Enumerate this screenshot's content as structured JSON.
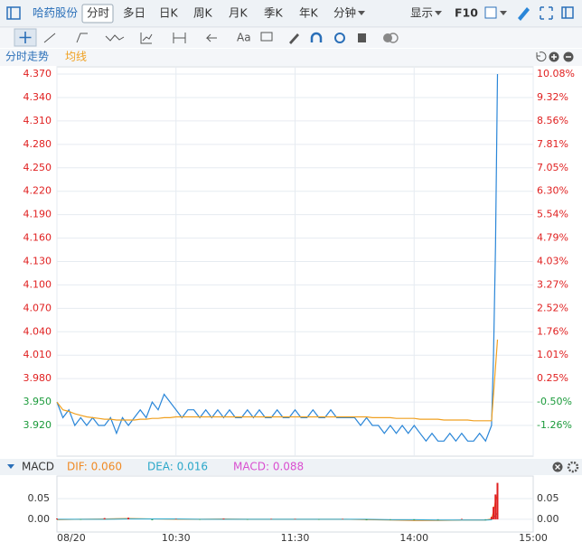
{
  "toolbar": {
    "stock": "哈药股份",
    "tabs": [
      "分时",
      "多日",
      "日K",
      "周K",
      "月K",
      "季K",
      "年K",
      "分钟"
    ],
    "display": "显示",
    "f10": "F10",
    "font_tool": "Aa"
  },
  "chart_data": [
    {
      "type": "line",
      "title": "分时走势",
      "x": [
        0,
        3,
        6,
        9,
        12,
        15,
        18,
        21,
        24,
        27,
        30,
        33,
        36,
        39,
        42,
        45,
        48,
        51,
        54,
        57,
        60,
        63,
        66,
        69,
        72,
        75,
        78,
        81,
        84,
        87,
        90,
        93,
        96,
        99,
        102,
        105,
        108,
        111,
        114,
        117,
        120,
        123,
        126,
        129,
        132,
        135,
        138,
        141,
        144,
        147,
        150,
        153,
        156,
        159,
        162,
        165,
        168,
        171,
        174,
        177,
        180,
        183,
        186,
        189,
        192,
        195,
        198,
        201,
        204,
        207,
        210,
        213,
        216,
        219,
        220,
        221,
        222
      ],
      "series": [
        {
          "color": "#2a86d8",
          "values": [
            3.95,
            3.93,
            3.94,
            3.92,
            3.93,
            3.92,
            3.93,
            3.92,
            3.92,
            3.93,
            3.91,
            3.93,
            3.92,
            3.93,
            3.94,
            3.93,
            3.95,
            3.94,
            3.96,
            3.95,
            3.94,
            3.93,
            3.94,
            3.94,
            3.93,
            3.94,
            3.93,
            3.94,
            3.93,
            3.94,
            3.93,
            3.93,
            3.94,
            3.93,
            3.94,
            3.93,
            3.93,
            3.94,
            3.93,
            3.93,
            3.94,
            3.93,
            3.93,
            3.94,
            3.93,
            3.93,
            3.94,
            3.93,
            3.93,
            3.93,
            3.93,
            3.92,
            3.93,
            3.92,
            3.92,
            3.91,
            3.92,
            3.91,
            3.92,
            3.91,
            3.92,
            3.91,
            3.9,
            3.91,
            3.9,
            3.9,
            3.91,
            3.9,
            3.91,
            3.9,
            3.9,
            3.91,
            3.9,
            3.92,
            4.01,
            4.15,
            4.37
          ]
        },
        {
          "name": "均线",
          "color": "#f0a020",
          "values": [
            3.95,
            3.94,
            3.938,
            3.935,
            3.933,
            3.931,
            3.93,
            3.929,
            3.928,
            3.928,
            3.927,
            3.927,
            3.927,
            3.927,
            3.928,
            3.928,
            3.929,
            3.929,
            3.93,
            3.93,
            3.931,
            3.931,
            3.931,
            3.931,
            3.931,
            3.931,
            3.931,
            3.931,
            3.931,
            3.931,
            3.931,
            3.931,
            3.931,
            3.931,
            3.931,
            3.931,
            3.931,
            3.931,
            3.931,
            3.931,
            3.931,
            3.931,
            3.931,
            3.931,
            3.931,
            3.931,
            3.931,
            3.931,
            3.931,
            3.931,
            3.931,
            3.931,
            3.931,
            3.93,
            3.93,
            3.93,
            3.93,
            3.929,
            3.929,
            3.929,
            3.929,
            3.928,
            3.928,
            3.928,
            3.928,
            3.927,
            3.927,
            3.927,
            3.927,
            3.927,
            3.926,
            3.926,
            3.926,
            3.926,
            3.96,
            3.995,
            4.03
          ]
        }
      ],
      "xlim": [
        0,
        240
      ],
      "xticks": [
        {
          "value": 0,
          "label": "08/20"
        },
        {
          "value": 60,
          "label": "10:30"
        },
        {
          "value": 120,
          "label": "11:30"
        },
        {
          "value": 180,
          "label": "14:00"
        },
        {
          "value": 240,
          "label": "15:00"
        }
      ],
      "ylim": [
        3.8807,
        4.3793
      ],
      "yticks": [
        {
          "value": 4.37,
          "label": "4.370"
        },
        {
          "value": 4.34,
          "label": "4.340"
        },
        {
          "value": 4.31,
          "label": "4.310"
        },
        {
          "value": 4.28,
          "label": "4.280"
        },
        {
          "value": 4.25,
          "label": "4.250"
        },
        {
          "value": 4.22,
          "label": "4.220"
        },
        {
          "value": 4.19,
          "label": "4.190"
        },
        {
          "value": 4.16,
          "label": "4.160"
        },
        {
          "value": 4.13,
          "label": "4.130"
        },
        {
          "value": 4.1,
          "label": "4.100"
        },
        {
          "value": 4.07,
          "label": "4.070"
        },
        {
          "value": 4.04,
          "label": "4.040"
        },
        {
          "value": 4.01,
          "label": "4.010"
        },
        {
          "value": 3.98,
          "label": "3.980"
        },
        {
          "value": 3.95,
          "label": "3.950"
        },
        {
          "value": 3.92,
          "label": "3.920"
        }
      ],
      "y2lim": [
        -2.25,
        10.31
      ],
      "y2ticks": [
        {
          "value": 10.08,
          "label": "10.08%"
        },
        {
          "value": 9.32,
          "label": "9.32%"
        },
        {
          "value": 8.56,
          "label": "8.56%"
        },
        {
          "value": 7.81,
          "label": "7.81%"
        },
        {
          "value": 7.05,
          "label": "7.05%"
        },
        {
          "value": 6.3,
          "label": "6.30%"
        },
        {
          "value": 5.54,
          "label": "5.54%"
        },
        {
          "value": 4.79,
          "label": "4.79%"
        },
        {
          "value": 4.03,
          "label": "4.03%"
        },
        {
          "value": 3.27,
          "label": "3.27%"
        },
        {
          "value": 2.52,
          "label": "2.52%"
        },
        {
          "value": 1.76,
          "label": "1.76%"
        },
        {
          "value": 1.01,
          "label": "1.01%"
        },
        {
          "value": 0.25,
          "label": "0.25%"
        },
        {
          "value": -0.5,
          "label": "-0.50%"
        },
        {
          "value": -1.26,
          "label": "-1.26%"
        }
      ],
      "grid": true
    },
    {
      "type": "macd",
      "title": "MACD",
      "x": [
        0,
        12,
        24,
        36,
        48,
        60,
        72,
        84,
        96,
        108,
        120,
        132,
        144,
        156,
        168,
        180,
        192,
        204,
        216,
        219,
        220,
        221,
        222
      ],
      "series": [
        {
          "name": "DIF: 0.060",
          "type": "line",
          "color": "#f08a24",
          "values": [
            -0.001,
            0,
            0.001,
            0.002,
            0.001,
            0,
            0,
            0.001,
            0,
            0,
            0,
            0,
            0,
            -0.001,
            -0.002,
            -0.003,
            -0.003,
            -0.002,
            -0.002,
            0.001,
            0.02,
            0.045,
            0.06
          ]
        },
        {
          "name": "DEA: 0.016",
          "type": "line",
          "color": "#2aa7c9",
          "values": [
            0,
            0,
            0,
            0.001,
            0.001,
            0.001,
            0,
            0,
            0,
            0,
            0,
            0,
            0,
            0,
            -0.001,
            -0.001,
            -0.002,
            -0.002,
            -0.002,
            -0.001,
            0.004,
            0.01,
            0.016
          ]
        },
        {
          "name": "MACD: 0.088",
          "type": "bar",
          "color": "#d94fd0",
          "up_color": "#e02020",
          "down_color": "#20a040",
          "values": [
            0.002,
            -0.001,
            0.003,
            0.004,
            -0.002,
            0.001,
            -0.001,
            0.002,
            -0.001,
            0.001,
            0.001,
            -0.001,
            0.001,
            -0.002,
            -0.001,
            -0.002,
            -0.001,
            0.001,
            -0.001,
            0.006,
            0.03,
            0.06,
            0.088
          ]
        }
      ],
      "ylim": [
        -0.022,
        0.098
      ],
      "yticks": [
        {
          "value": 0.05,
          "label": "0.05"
        },
        {
          "value": 0,
          "label": "0.00"
        }
      ]
    }
  ]
}
